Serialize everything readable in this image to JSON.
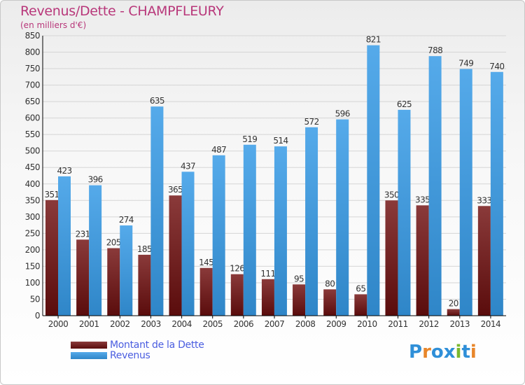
{
  "title": "Revenus/Dette - CHAMPFLEURY",
  "subtitle": "(en milliers d'€)",
  "logo": {
    "text": "Proxiti",
    "letter_colors": [
      "#2f8fd8",
      "#e8862a",
      "#2f8fd8",
      "#2f8fd8",
      "#7ab82e",
      "#2f8fd8",
      "#e8862a"
    ]
  },
  "colors": {
    "dette_top": "#8a3a3a",
    "dette_bottom": "#5a0c0c",
    "revenus_top": "#55aaea",
    "revenus_bottom": "#2f86c8",
    "axis": "#000000",
    "grid": "#d5d5d5",
    "title": "#b8377a",
    "legend_text": "#4a5de0"
  },
  "chart_data": {
    "type": "bar",
    "title": "Revenus/Dette - CHAMPFLEURY",
    "subtitle": "(en milliers d'€)",
    "categories": [
      "2000",
      "2001",
      "2002",
      "2003",
      "2004",
      "2005",
      "2006",
      "2007",
      "2008",
      "2009",
      "2010",
      "2011",
      "2012",
      "2013",
      "2014"
    ],
    "series": [
      {
        "name": "Montant de la Dette",
        "values": [
          351,
          231,
          205,
          185,
          365,
          145,
          126,
          111,
          95,
          80,
          65,
          350,
          335,
          20,
          333
        ]
      },
      {
        "name": "Revenus",
        "values": [
          423,
          396,
          274,
          635,
          437,
          487,
          519,
          514,
          572,
          596,
          821,
          625,
          788,
          749,
          740
        ]
      }
    ],
    "ylim": [
      0,
      850
    ],
    "yticks": [
      0,
      50,
      100,
      150,
      200,
      250,
      300,
      350,
      400,
      450,
      500,
      550,
      600,
      650,
      700,
      750,
      800,
      850
    ],
    "grid": true,
    "legend_position": "bottom-left"
  }
}
